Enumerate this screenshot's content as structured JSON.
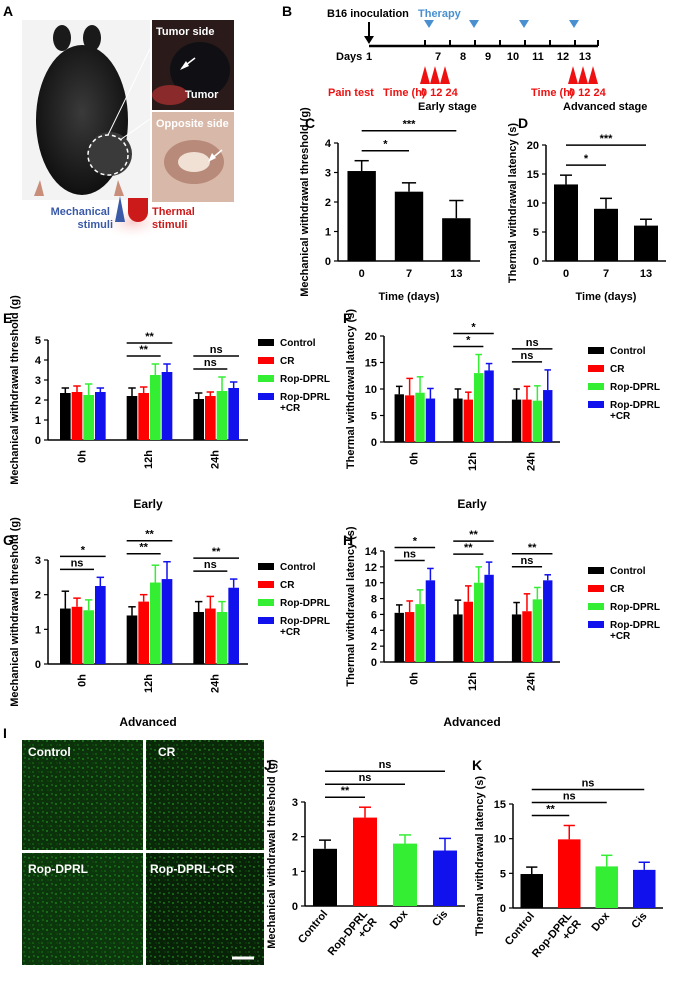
{
  "panel_letters": [
    "A",
    "B",
    "C",
    "D",
    "E",
    "F",
    "G",
    "H",
    "I",
    "J",
    "K"
  ],
  "colors": {
    "black": "#000000",
    "red": "#ff0000",
    "green": "#33ee33",
    "blue": "#1111ee",
    "therapy": "#4a90d0",
    "pain": "#ee1111",
    "mech": "#3a5aa8",
    "thermal": "#cc1a1a"
  },
  "panel_a": {
    "tumor_side": "Tumor side",
    "tumor": "Tumor",
    "opposite_side": "Opposite side",
    "mechanical": [
      "Mechanical",
      "stimuli"
    ],
    "thermal": [
      "Thermal",
      "stimuli"
    ]
  },
  "panel_b": {
    "inoculation": "B16 inoculation",
    "therapy": "Therapy",
    "days_label": "Days",
    "day_ticks": [
      "1",
      "7",
      "8",
      "9",
      "10",
      "11",
      "12",
      "13"
    ],
    "pain_test": "Pain test",
    "time_label": "Time (h)",
    "early_hours": "0 12 24",
    "advanced_hours": "0 12 24",
    "early_stage": "Early stage",
    "advanced_stage": "Advanced stage"
  },
  "panel_i": {
    "labels": [
      "Control",
      "CR",
      "Rop-DPRL",
      "Rop-DPRL+CR"
    ]
  },
  "legend": {
    "entries": [
      {
        "lines": [
          "Control"
        ],
        "color": "#000000"
      },
      {
        "lines": [
          "CR"
        ],
        "color": "#ff0000"
      },
      {
        "lines": [
          "Rop-DPRL"
        ],
        "color": "#33ee33"
      },
      {
        "lines": [
          "Rop-DPRL",
          "+CR"
        ],
        "color": "#1111ee"
      }
    ]
  },
  "chart_data": [
    {
      "id": "C",
      "type": "bar",
      "categories": [
        "0",
        "7",
        "13"
      ],
      "values": [
        3.05,
        2.35,
        1.45
      ],
      "errors": [
        0.35,
        0.3,
        0.6
      ],
      "colors": [
        "#000000",
        "#000000",
        "#000000"
      ],
      "xlabel": "Time (days)",
      "ylabel": "Mechanical withdrawal threshold (g)",
      "ylim": [
        0,
        4
      ],
      "yticks": [
        "0",
        "1",
        "2",
        "3",
        "4"
      ],
      "sig": [
        {
          "from": 0,
          "to": 1,
          "label": "*"
        },
        {
          "from": 0,
          "to": 2,
          "label": "***"
        }
      ]
    },
    {
      "id": "D",
      "type": "bar",
      "categories": [
        "0",
        "7",
        "13"
      ],
      "values": [
        13.2,
        9.0,
        6.1
      ],
      "errors": [
        1.6,
        1.8,
        1.1
      ],
      "colors": [
        "#000000",
        "#000000",
        "#000000"
      ],
      "xlabel": "Time (days)",
      "ylabel": "Thermal withdrawal latency (s)",
      "ylim": [
        0,
        20
      ],
      "yticks": [
        "0",
        "5",
        "10",
        "15",
        "20"
      ],
      "sig": [
        {
          "from": 0,
          "to": 1,
          "label": "*"
        },
        {
          "from": 0,
          "to": 2,
          "label": "***"
        }
      ]
    },
    {
      "id": "E",
      "type": "bar",
      "categories": [
        "0h",
        "12h",
        "24h"
      ],
      "xlabel": "Early",
      "ylabel": "Mechanical withdrawal threshold (g)",
      "ylim": [
        0,
        5
      ],
      "yticks": [
        "0",
        "1",
        "2",
        "3",
        "4",
        "5"
      ],
      "series": [
        {
          "name": "Control",
          "values": [
            2.35,
            2.2,
            2.05
          ],
          "errors": [
            0.25,
            0.4,
            0.3
          ]
        },
        {
          "name": "CR",
          "values": [
            2.4,
            2.35,
            2.2
          ],
          "errors": [
            0.3,
            0.3,
            0.2
          ]
        },
        {
          "name": "Rop-DPRL",
          "values": [
            2.25,
            3.25,
            2.45
          ],
          "errors": [
            0.55,
            0.55,
            0.7
          ]
        },
        {
          "name": "Rop-DPRL+CR",
          "values": [
            2.4,
            3.4,
            2.6
          ],
          "errors": [
            0.2,
            0.4,
            0.3
          ]
        }
      ],
      "sig": [
        {
          "group": 1,
          "from": 0,
          "to": 3,
          "label": "**"
        },
        {
          "group": 1,
          "from": 0,
          "to": 2,
          "label": "**"
        },
        {
          "group": 2,
          "from": 0,
          "to": 3,
          "label": "ns"
        },
        {
          "group": 2,
          "from": 0,
          "to": 2,
          "label": "ns"
        }
      ]
    },
    {
      "id": "F",
      "type": "bar",
      "categories": [
        "0h",
        "12h",
        "24h"
      ],
      "xlabel": "Early",
      "ylabel": "Thermal withdrawal latency (s)",
      "ylim": [
        0,
        20
      ],
      "yticks": [
        "0",
        "5",
        "10",
        "15",
        "20"
      ],
      "series": [
        {
          "name": "Control",
          "values": [
            9.0,
            8.2,
            8.0
          ],
          "errors": [
            1.5,
            1.8,
            2.0
          ]
        },
        {
          "name": "CR",
          "values": [
            8.8,
            8.0,
            8.0
          ],
          "errors": [
            3.2,
            1.4,
            2.5
          ]
        },
        {
          "name": "Rop-DPRL",
          "values": [
            9.3,
            13.0,
            7.8
          ],
          "errors": [
            3.0,
            3.5,
            2.8
          ]
        },
        {
          "name": "Rop-DPRL+CR",
          "values": [
            8.2,
            13.5,
            9.8
          ],
          "errors": [
            1.9,
            1.3,
            3.8
          ]
        }
      ],
      "sig": [
        {
          "group": 1,
          "from": 0,
          "to": 3,
          "label": "*"
        },
        {
          "group": 1,
          "from": 0,
          "to": 2,
          "label": "*"
        },
        {
          "group": 2,
          "from": 0,
          "to": 3,
          "label": "ns"
        },
        {
          "group": 2,
          "from": 0,
          "to": 2,
          "label": "ns"
        }
      ]
    },
    {
      "id": "G",
      "type": "bar",
      "categories": [
        "0h",
        "12h",
        "24h"
      ],
      "xlabel": "Advanced",
      "ylabel": "Mechanical withdrawal threshold (g)",
      "ylim": [
        0,
        3
      ],
      "yticks": [
        "0",
        "1",
        "2",
        "3"
      ],
      "series": [
        {
          "name": "Control",
          "values": [
            1.6,
            1.4,
            1.5
          ],
          "errors": [
            0.5,
            0.25,
            0.3
          ]
        },
        {
          "name": "CR",
          "values": [
            1.65,
            1.8,
            1.6
          ],
          "errors": [
            0.25,
            0.2,
            0.35
          ]
        },
        {
          "name": "Rop-DPRL",
          "values": [
            1.55,
            2.35,
            1.5
          ],
          "errors": [
            0.3,
            0.5,
            0.3
          ]
        },
        {
          "name": "Rop-DPRL+CR",
          "values": [
            2.25,
            2.45,
            2.2
          ],
          "errors": [
            0.25,
            0.5,
            0.25
          ]
        }
      ],
      "sig": [
        {
          "group": 0,
          "from": 0,
          "to": 3,
          "label": "*"
        },
        {
          "group": 0,
          "from": 0,
          "to": 2,
          "label": "ns"
        },
        {
          "group": 1,
          "from": 0,
          "to": 3,
          "label": "**"
        },
        {
          "group": 1,
          "from": 0,
          "to": 2,
          "label": "**"
        },
        {
          "group": 2,
          "from": 0,
          "to": 3,
          "label": "**"
        },
        {
          "group": 2,
          "from": 0,
          "to": 2,
          "label": "ns"
        }
      ]
    },
    {
      "id": "H",
      "type": "bar",
      "categories": [
        "0h",
        "12h",
        "24h"
      ],
      "xlabel": "Advanced",
      "ylabel": "Thermal withdrawal latency (s)",
      "ylim": [
        0,
        14
      ],
      "yticks": [
        "0",
        "2",
        "4",
        "6",
        "8",
        "10",
        "12",
        "14"
      ],
      "series": [
        {
          "name": "Control",
          "values": [
            6.2,
            6.0,
            6.0
          ],
          "errors": [
            1.0,
            1.8,
            1.5
          ]
        },
        {
          "name": "CR",
          "values": [
            6.3,
            7.6,
            6.4
          ],
          "errors": [
            1.4,
            2.0,
            2.2
          ]
        },
        {
          "name": "Rop-DPRL",
          "values": [
            7.3,
            10.0,
            7.9
          ],
          "errors": [
            1.8,
            2.0,
            1.5
          ]
        },
        {
          "name": "Rop-DPRL+CR",
          "values": [
            10.3,
            11.0,
            10.3
          ],
          "errors": [
            1.5,
            1.6,
            0.7
          ]
        }
      ],
      "sig": [
        {
          "group": 0,
          "from": 0,
          "to": 3,
          "label": "*"
        },
        {
          "group": 0,
          "from": 0,
          "to": 2,
          "label": "ns"
        },
        {
          "group": 1,
          "from": 0,
          "to": 3,
          "label": "**"
        },
        {
          "group": 1,
          "from": 0,
          "to": 2,
          "label": "**"
        },
        {
          "group": 2,
          "from": 0,
          "to": 3,
          "label": "**"
        },
        {
          "group": 2,
          "from": 0,
          "to": 2,
          "label": "ns"
        }
      ]
    },
    {
      "id": "J",
      "type": "bar",
      "categories": [
        "Control",
        "Rop-DPRL\n+CR",
        "Dox",
        "Cis"
      ],
      "values": [
        1.65,
        2.55,
        1.8,
        1.6
      ],
      "errors": [
        0.25,
        0.3,
        0.25,
        0.35
      ],
      "colors": [
        "#000000",
        "#ff0000",
        "#33ee33",
        "#1111ee"
      ],
      "xlabel": "",
      "ylabel": "Mechanical withdrawal threshold (g)",
      "ylim": [
        0,
        3
      ],
      "yticks": [
        "0",
        "1",
        "2",
        "3"
      ],
      "sig": [
        {
          "from": 0,
          "to": 1,
          "label": "**"
        },
        {
          "from": 0,
          "to": 2,
          "label": "ns"
        },
        {
          "from": 0,
          "to": 3,
          "label": "ns"
        }
      ]
    },
    {
      "id": "K",
      "type": "bar",
      "categories": [
        "Control",
        "Rop-DPRL\n+CR",
        "Dox",
        "Cis"
      ],
      "values": [
        4.9,
        9.9,
        6.0,
        5.5
      ],
      "errors": [
        1.0,
        2.0,
        1.6,
        1.1
      ],
      "colors": [
        "#000000",
        "#ff0000",
        "#33ee33",
        "#1111ee"
      ],
      "xlabel": "",
      "ylabel": "Thermal withdrawal latency (s)",
      "ylim": [
        0,
        15
      ],
      "yticks": [
        "0",
        "5",
        "10",
        "15"
      ],
      "sig": [
        {
          "from": 0,
          "to": 1,
          "label": "**"
        },
        {
          "from": 0,
          "to": 2,
          "label": "ns"
        },
        {
          "from": 0,
          "to": 3,
          "label": "ns"
        }
      ]
    }
  ]
}
